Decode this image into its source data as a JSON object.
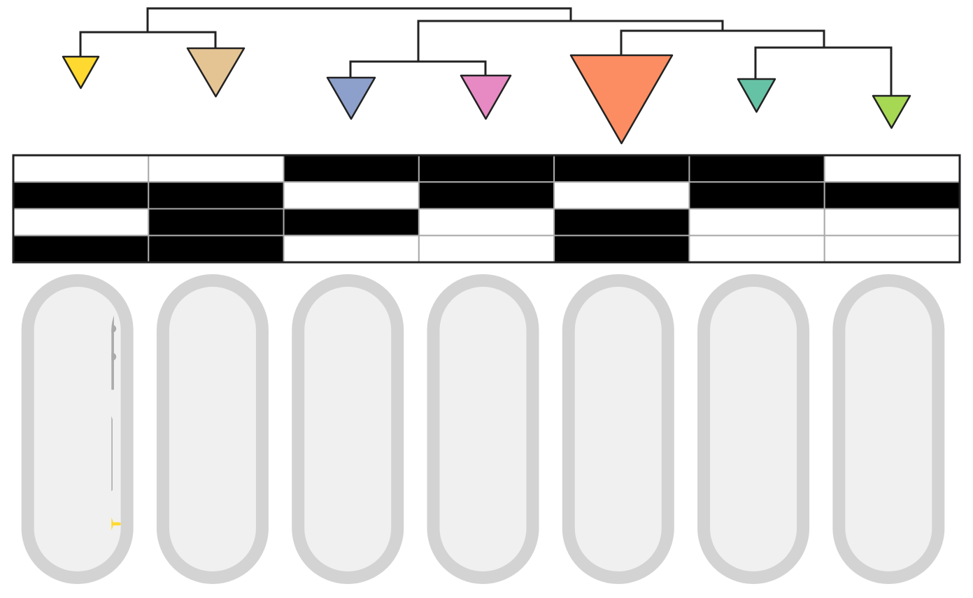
{
  "clades": [
    {
      "color": "#ffd92f"
    },
    {
      "color": "#e5c494"
    },
    {
      "color": "#8da0cb"
    },
    {
      "color": "#e78ac3"
    },
    {
      "color": "#fc8d62"
    },
    {
      "color": "#66c2a5"
    },
    {
      "color": "#a6d854"
    }
  ],
  "matrix": [
    [
      0,
      0,
      1,
      1,
      1,
      1,
      0
    ],
    [
      1,
      1,
      0,
      1,
      0,
      1,
      1
    ],
    [
      0,
      1,
      1,
      0,
      1,
      0,
      0
    ],
    [
      1,
      1,
      0,
      0,
      1,
      0,
      0
    ]
  ]
}
